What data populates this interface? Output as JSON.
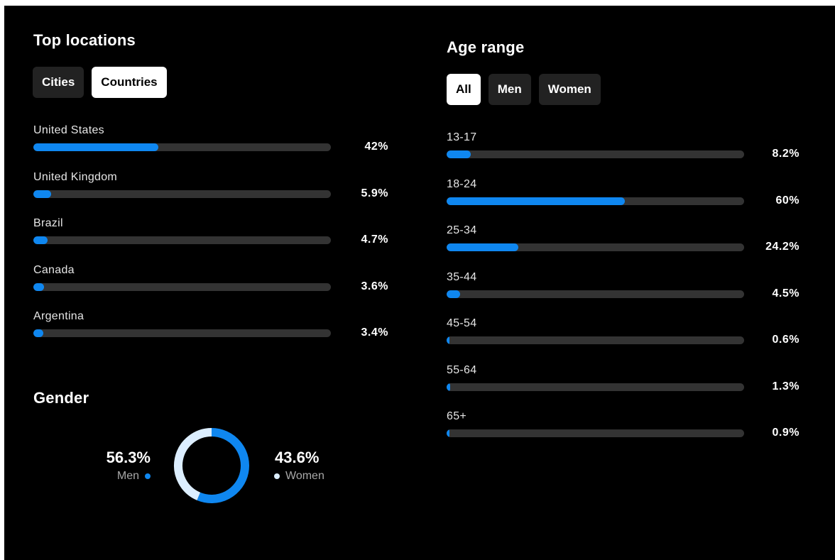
{
  "locations": {
    "title": "Top locations",
    "tabs": [
      {
        "label": "Cities",
        "active": false
      },
      {
        "label": "Countries",
        "active": true
      }
    ]
  },
  "age": {
    "title": "Age range",
    "tabs": [
      {
        "label": "All",
        "active": true
      },
      {
        "label": "Men",
        "active": false
      },
      {
        "label": "Women",
        "active": false
      }
    ]
  },
  "gender": {
    "title": "Gender",
    "men_pct": "56.3%",
    "men_label": "Men",
    "women_pct": "43.6%",
    "women_label": "Women"
  },
  "colors": {
    "accent": "#0f87f0",
    "track": "#333333",
    "women": "#dceeff",
    "background": "#000000"
  },
  "chart_data": [
    {
      "type": "bar",
      "orientation": "horizontal",
      "title": "Top locations",
      "categories": [
        "United States",
        "United Kingdom",
        "Brazil",
        "Canada",
        "Argentina"
      ],
      "values": [
        42,
        5.9,
        4.7,
        3.6,
        3.4
      ],
      "value_labels": [
        "42%",
        "5.9%",
        "4.7%",
        "3.6%",
        "3.4%"
      ],
      "xlim": [
        0,
        100
      ]
    },
    {
      "type": "bar",
      "orientation": "horizontal",
      "title": "Age range",
      "categories": [
        "13-17",
        "18-24",
        "25-34",
        "35-44",
        "45-54",
        "55-64",
        "65+"
      ],
      "values": [
        8.2,
        60,
        24.2,
        4.5,
        0.6,
        1.3,
        0.9
      ],
      "value_labels": [
        "8.2%",
        "60%",
        "24.2%",
        "4.5%",
        "0.6%",
        "1.3%",
        "0.9%"
      ],
      "xlim": [
        0,
        100
      ]
    },
    {
      "type": "pie",
      "style": "donut",
      "title": "Gender",
      "categories": [
        "Men",
        "Women"
      ],
      "values": [
        56.3,
        43.6
      ]
    }
  ]
}
